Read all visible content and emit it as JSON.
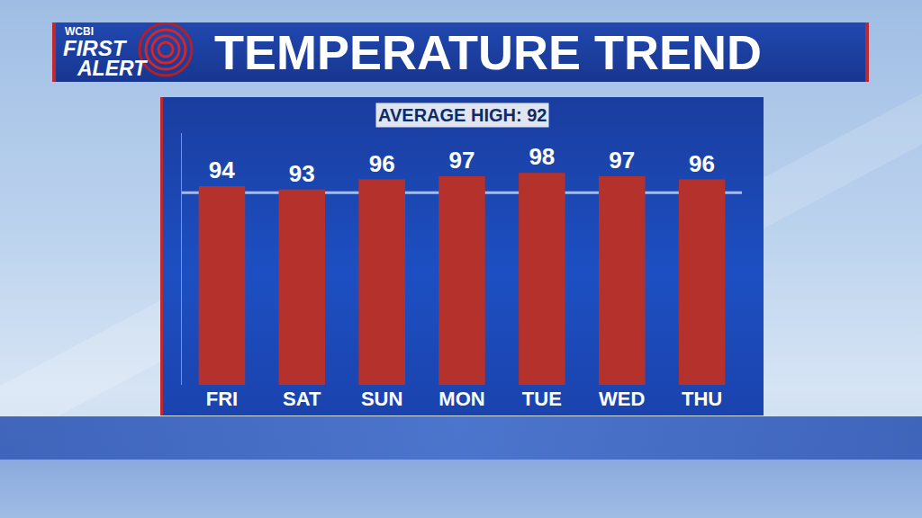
{
  "branding": {
    "station": "WCBI",
    "name": "FIRST ALERT"
  },
  "chart_data": {
    "type": "bar",
    "title": "TEMPERATURE TREND",
    "categories": [
      "FRI",
      "SAT",
      "SUN",
      "MON",
      "TUE",
      "WED",
      "THU"
    ],
    "values": [
      94,
      93,
      96,
      97,
      98,
      97,
      96
    ],
    "color": "#b5322c",
    "ylim": [
      34,
      110
    ],
    "yticks": [],
    "grid": false,
    "data_labels": true,
    "tick_labels": "x",
    "average_label": "AVERAGE HIGH: 92",
    "average_value": 92
  }
}
